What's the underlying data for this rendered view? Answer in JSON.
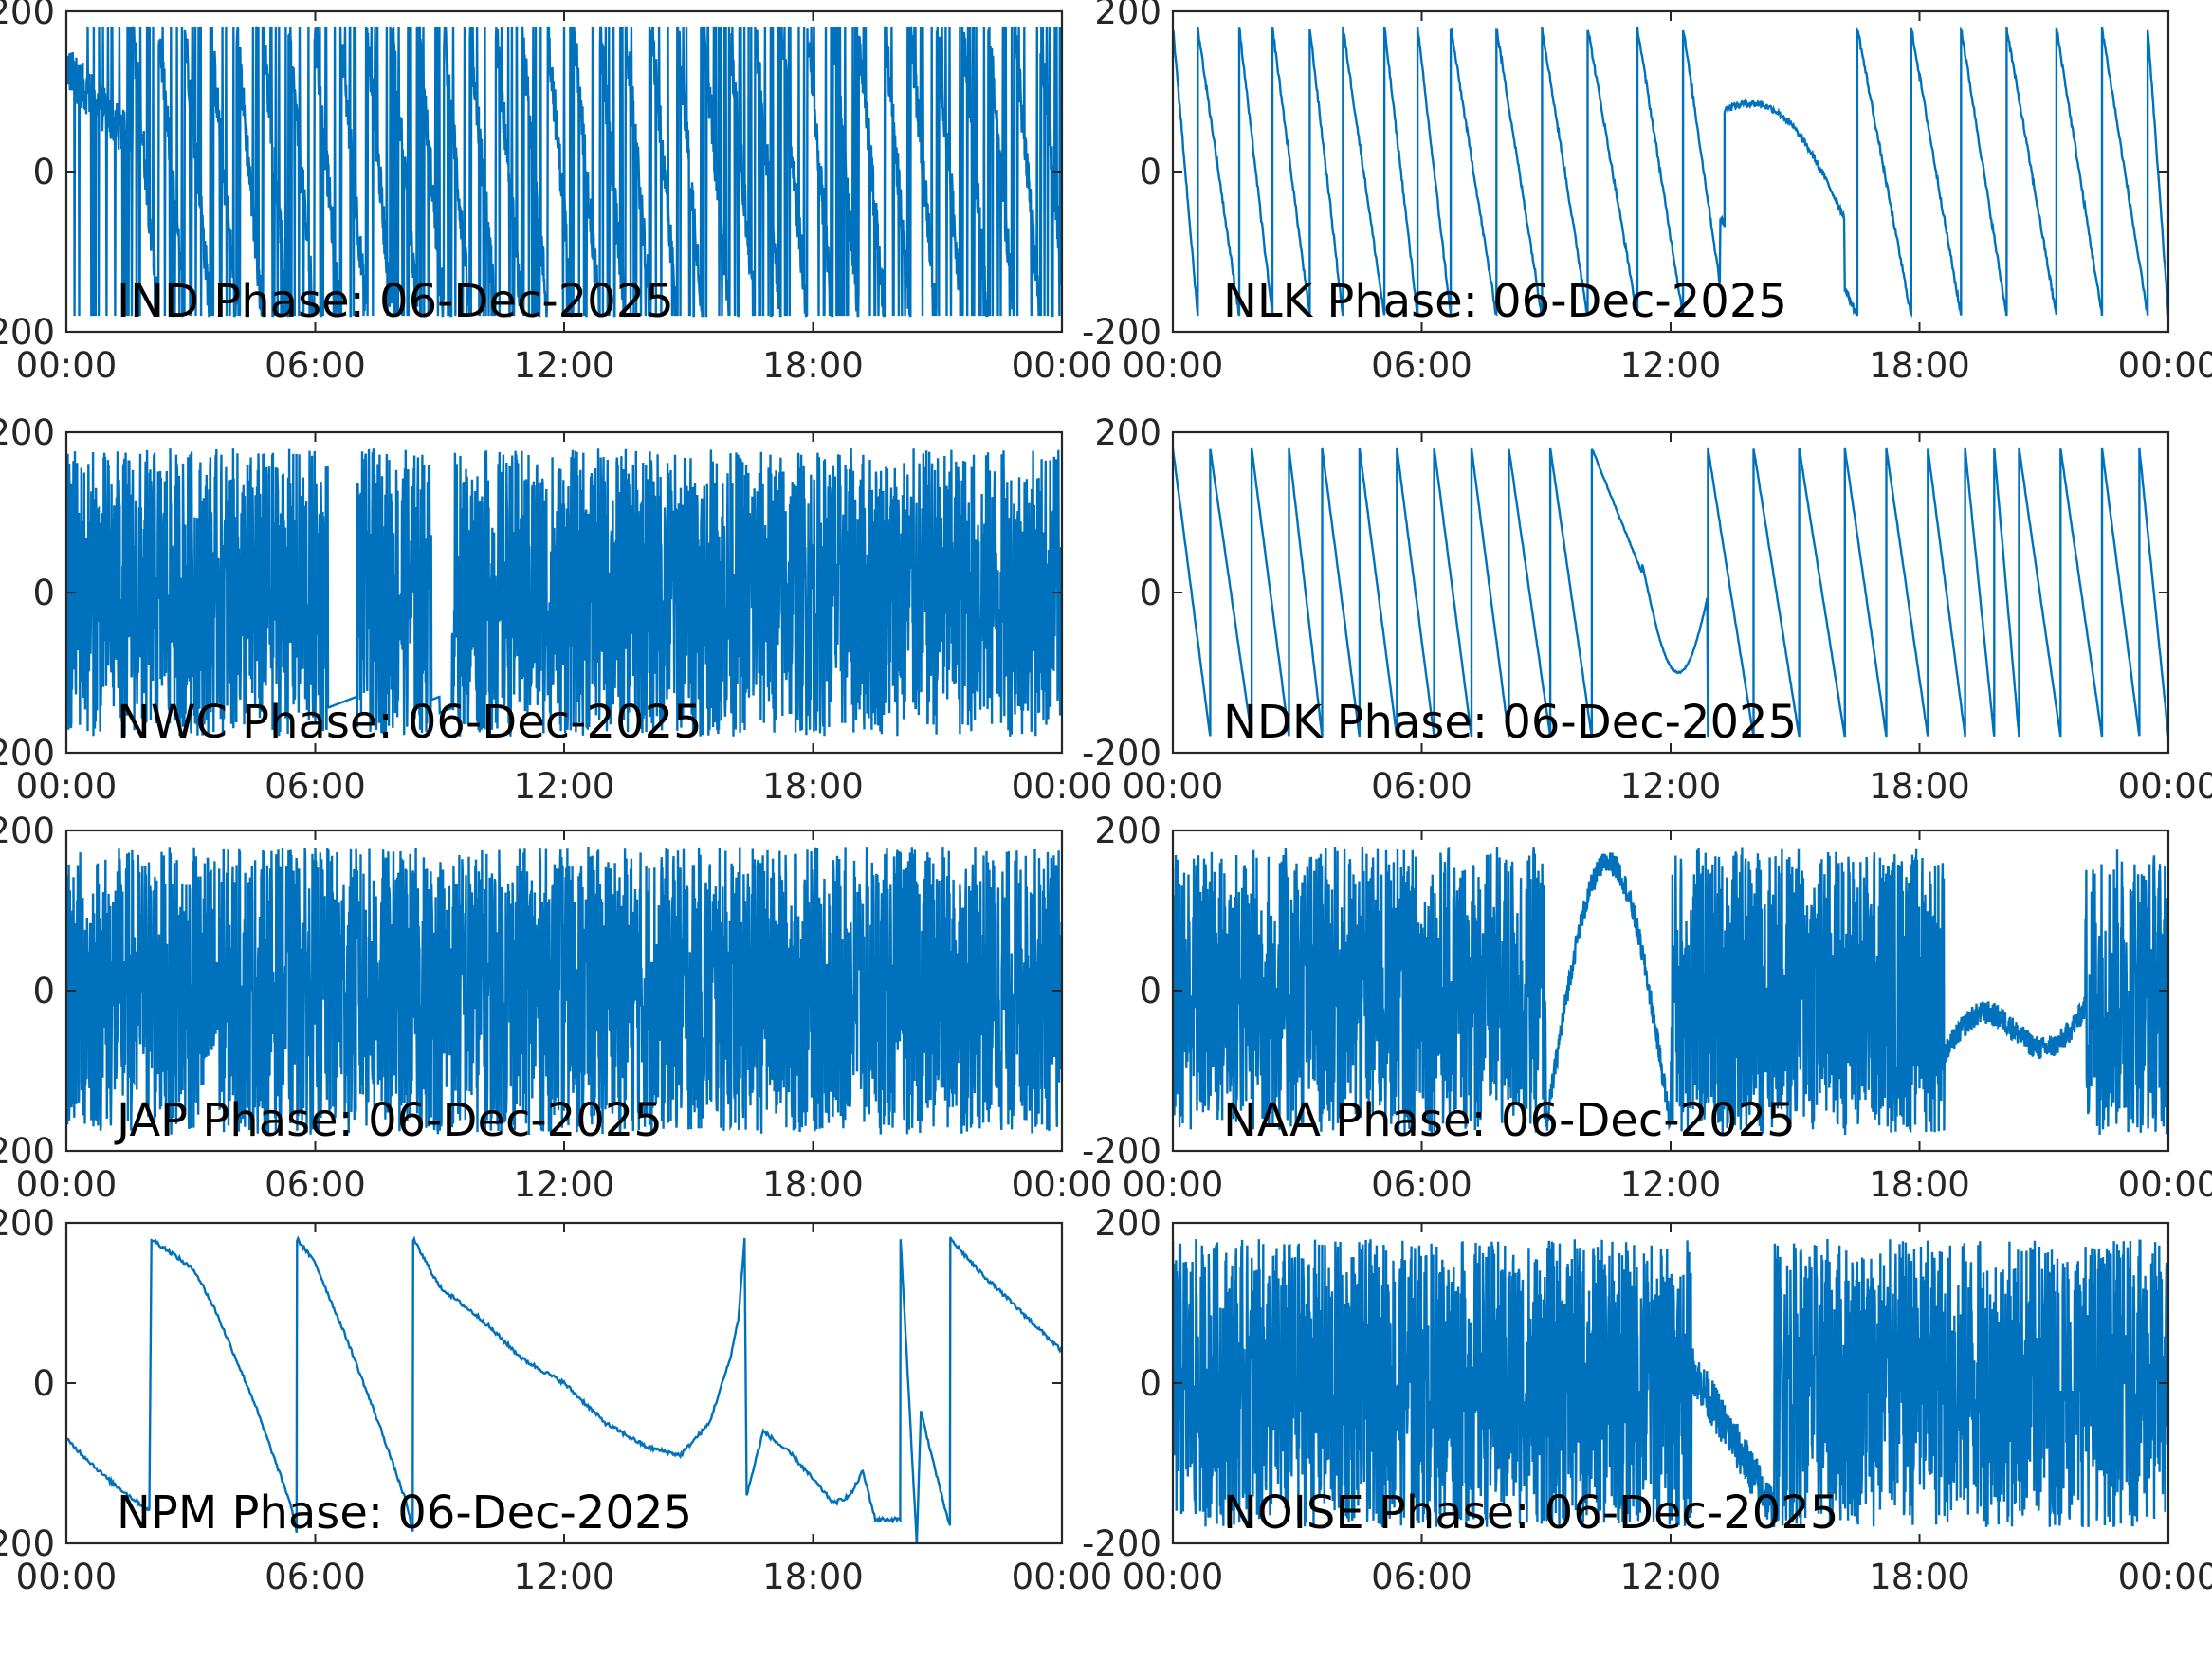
{
  "figure": {
    "background": "#ffffff",
    "line_color": "#0072bd",
    "axis_color": "#262626"
  },
  "chart_data": [
    {
      "type": "line",
      "title": "IND Phase: 06-Dec-2025",
      "station": "IND",
      "x_tick_labels": [
        "00:00",
        "06:00",
        "12:00",
        "18:00",
        "00:00"
      ],
      "y_tick_labels": [
        "200",
        "0",
        "-200"
      ],
      "xlim_hours": [
        0,
        24
      ],
      "ylim": [
        -200,
        200
      ],
      "grid": false,
      "series": [
        {
          "style": "dense",
          "wrap_times_h": [
            1.6,
            1.9,
            2.4,
            3.0,
            3.6,
            4.2,
            4.8,
            5.4,
            6.0,
            6.6,
            7.2,
            7.8,
            8.2,
            8.9,
            9.6,
            10.2,
            10.8,
            11.4,
            12.1,
            12.8,
            13.5,
            14.2,
            14.8,
            15.5,
            16.2,
            16.9,
            17.6,
            18.3,
            19.0,
            19.7,
            20.4,
            21.1,
            21.8,
            22.5,
            23.2,
            23.9
          ],
          "noise": 60
        }
      ]
    },
    {
      "type": "line",
      "title": "NLK Phase: 06-Dec-2025",
      "station": "NLK",
      "x_tick_labels": [
        "00:00",
        "06:00",
        "12:00",
        "18:00",
        "00:00"
      ],
      "y_tick_labels": [
        "200",
        "0",
        "-200"
      ],
      "xlim_hours": [
        0,
        24
      ],
      "ylim": [
        -200,
        200
      ],
      "grid": false,
      "series": [
        {
          "style": "sawtooth",
          "wrap_times_h": [
            0.6,
            1.6,
            2.4,
            3.3,
            4.1,
            5.1,
            5.9,
            6.7,
            7.8,
            8.9,
            10.0,
            11.2,
            12.3,
            13.3,
            16.5,
            17.8,
            19.0,
            20.1,
            21.3,
            22.4,
            23.5
          ],
          "bump_center_h": 14.7,
          "bump_height": 60,
          "noise": 8
        }
      ]
    },
    {
      "type": "line",
      "title": "NWC Phase: 06-Dec-2025",
      "station": "NWC",
      "x_tick_labels": [
        "00:00",
        "06:00",
        "12:00",
        "18:00",
        "00:00"
      ],
      "y_tick_labels": [
        "200",
        "0",
        "-200"
      ],
      "xlim_hours": [
        0,
        24
      ],
      "ylim": [
        -200,
        200
      ],
      "grid": false,
      "series": [
        {
          "style": "noise",
          "density": 0.9,
          "gaps_h": [
            [
              6.3,
              7.0
            ],
            [
              8.8,
              9.3
            ]
          ],
          "noise": 200
        }
      ]
    },
    {
      "type": "line",
      "title": "NDK Phase: 06-Dec-2025",
      "station": "NDK",
      "x_tick_labels": [
        "00:00",
        "06:00",
        "12:00",
        "18:00",
        "00:00"
      ],
      "y_tick_labels": [
        "200",
        "0",
        "-200"
      ],
      "xlim_hours": [
        0,
        24
      ],
      "ylim": [
        -200,
        200
      ],
      "grid": false,
      "series": [
        {
          "style": "sawtooth_sparse",
          "wrap_times_h": [
            0.9,
            1.9,
            2.8,
            3.6,
            4.5,
            5.4,
            6.3,
            7.2,
            8.1,
            9.1,
            10.1,
            12.9,
            14.0,
            15.1,
            16.2,
            17.2,
            18.2,
            19.1,
            19.8,
            20.4,
            21.4,
            22.4,
            23.3
          ],
          "curve_region_h": [
            11.3,
            12.9
          ],
          "noise": 2
        }
      ]
    },
    {
      "type": "line",
      "title": "JAP Phase: 06-Dec-2025",
      "station": "JAP",
      "x_tick_labels": [
        "00:00",
        "06:00",
        "12:00",
        "18:00",
        "00:00"
      ],
      "y_tick_labels": [
        "200",
        "0",
        "-200"
      ],
      "xlim_hours": [
        0,
        24
      ],
      "ylim": [
        -200,
        200
      ],
      "grid": false,
      "series": [
        {
          "style": "noise",
          "density": 1.0,
          "gaps_h": [],
          "noise": 200
        }
      ]
    },
    {
      "type": "line",
      "title": "NAA Phase: 06-Dec-2025",
      "station": "NAA",
      "x_tick_labels": [
        "00:00",
        "06:00",
        "12:00",
        "18:00",
        "00:00"
      ],
      "y_tick_labels": [
        "200",
        "0",
        "-200"
      ],
      "xlim_hours": [
        0,
        24
      ],
      "ylim": [
        -200,
        200
      ],
      "grid": false,
      "series": [
        {
          "style": "mixed",
          "noisy_spans_h": [
            [
              0,
              6.2
            ],
            [
              6.0,
              9.0
            ],
            [
              12.0,
              18.6
            ],
            [
              22.0,
              24
            ]
          ],
          "smooth_spans_h": [
            [
              9.0,
              12.0
            ],
            [
              18.6,
              22.0
            ]
          ],
          "noise": 200
        }
      ]
    },
    {
      "type": "line",
      "title": "NPM Phase: 06-Dec-2025",
      "station": "NPM",
      "x_tick_labels": [
        "00:00",
        "06:00",
        "12:00",
        "18:00",
        "00:00"
      ],
      "y_tick_labels": [
        "200",
        "0",
        "-200"
      ],
      "xlim_hours": [
        0,
        24
      ],
      "ylim": [
        -200,
        200
      ],
      "grid": false,
      "series": [
        {
          "style": "points",
          "points": [
            [
              0.0,
              -70
            ],
            [
              1.0,
              -120
            ],
            [
              1.5,
              -140
            ],
            [
              2.0,
              -160
            ],
            [
              2.05,
              180
            ],
            [
              2.6,
              160
            ],
            [
              3.1,
              140
            ],
            [
              3.6,
              90
            ],
            [
              4.5,
              -20
            ],
            [
              5.4,
              -150
            ],
            [
              5.55,
              -185
            ],
            [
              5.56,
              180
            ],
            [
              6.0,
              150
            ],
            [
              6.8,
              50
            ],
            [
              7.6,
              -60
            ],
            [
              8.2,
              -150
            ],
            [
              8.35,
              -185
            ],
            [
              8.36,
              180
            ],
            [
              9.0,
              120
            ],
            [
              10.0,
              80
            ],
            [
              11.0,
              30
            ],
            [
              12.0,
              0
            ],
            [
              13.0,
              -50
            ],
            [
              14.0,
              -80
            ],
            [
              14.8,
              -90
            ],
            [
              15.5,
              -50
            ],
            [
              16.0,
              30
            ],
            [
              16.2,
              80
            ],
            [
              16.35,
              180
            ],
            [
              16.4,
              -140
            ],
            [
              16.8,
              -60
            ],
            [
              17.5,
              -90
            ],
            [
              18.5,
              -150
            ],
            [
              18.9,
              -140
            ],
            [
              19.2,
              -110
            ],
            [
              19.5,
              -170
            ],
            [
              20.1,
              -170
            ],
            [
              20.11,
              180
            ],
            [
              20.5,
              -200
            ],
            [
              20.6,
              -35
            ],
            [
              21.0,
              -120
            ],
            [
              21.3,
              -180
            ],
            [
              21.31,
              180
            ],
            [
              22.0,
              140
            ],
            [
              23.0,
              90
            ],
            [
              24.0,
              40
            ]
          ],
          "noise": 5
        }
      ]
    },
    {
      "type": "line",
      "title": "NOISE Phase: 06-Dec-2025",
      "station": "NOISE",
      "x_tick_labels": [
        "00:00",
        "06:00",
        "12:00",
        "18:00",
        "00:00"
      ],
      "y_tick_labels": [
        "200",
        "0",
        "-200"
      ],
      "xlim_hours": [
        0,
        24
      ],
      "ylim": [
        -200,
        200
      ],
      "grid": false,
      "series": [
        {
          "style": "noise",
          "density": 0.85,
          "gaps_h": [],
          "dip_h": [
            12.5,
            14.5
          ],
          "noise": 200
        }
      ]
    }
  ]
}
